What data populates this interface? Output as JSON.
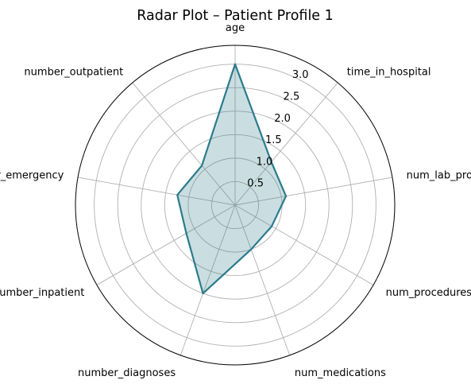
{
  "chart_data": {
    "type": "radar",
    "title": "Radar Plot – Patient Profile 1",
    "axes": [
      "age",
      "time_in_hospital",
      "num_lab_procedures",
      "num_procedures",
      "num_medications",
      "number_diagnoses",
      "number_inpatient",
      "number_emergency",
      "number_outpatient"
    ],
    "values": [
      3.0,
      1.2,
      1.1,
      0.9,
      1.0,
      2.0,
      1.2,
      1.25,
      1.1
    ],
    "rmax": 3.4,
    "rticks": [
      0.5,
      1.0,
      1.5,
      2.0,
      2.5,
      3.0
    ],
    "rtick_labels": [
      "0.5",
      "1.0",
      "1.5",
      "2.0",
      "2.5",
      "3.0"
    ],
    "grid": true,
    "colors": {
      "line": "#2a7b8c",
      "fill": "#2a7b8c",
      "grid": "#b0b0b0",
      "frame": "#000000"
    }
  }
}
